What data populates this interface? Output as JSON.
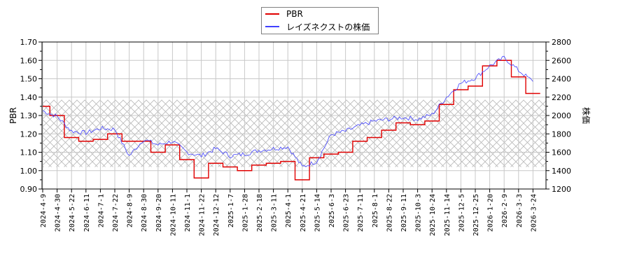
{
  "legend": {
    "items": [
      {
        "label": "PBR",
        "color": "#e00000"
      },
      {
        "label": "レイズネクストの株価",
        "color": "#4040ff"
      }
    ]
  },
  "chart_data": {
    "type": "line",
    "title": "",
    "xlabel": "",
    "ylabel": "PBR",
    "y2label": "株価",
    "ylim": [
      0.9,
      1.7
    ],
    "y2lim": [
      1200,
      2800
    ],
    "yticks": [
      "0.90",
      "1.00",
      "1.10",
      "1.20",
      "1.30",
      "1.40",
      "1.50",
      "1.60",
      "1.70"
    ],
    "y2ticks": [
      "1200",
      "1400",
      "1600",
      "1800",
      "2000",
      "2200",
      "2400",
      "2600",
      "2800"
    ],
    "grid": true,
    "legend_position": "top-center",
    "shaded_band": {
      "pbr_from": 1.02,
      "pbr_to": 1.385,
      "pattern": "crosshatch"
    },
    "categories": [
      "2024-4-9",
      "2024-4-30",
      "2024-5-22",
      "2024-6-11",
      "2024-7-1",
      "2024-7-22",
      "2024-8-9",
      "2024-8-30",
      "2024-9-20",
      "2024-10-11",
      "2024-11-1",
      "2024-11-22",
      "2024-12-12",
      "2025-1-7",
      "2025-1-28",
      "2025-2-18",
      "2025-3-11",
      "2025-4-1",
      "2025-4-21",
      "2025-5-14",
      "2025-6-3",
      "2025-6-23",
      "2025-7-11",
      "2025-8-1",
      "2025-8-22",
      "2025-9-11",
      "2025-10-3",
      "2025-10-24",
      "2025-11-14",
      "2025-12-5",
      "2025-12-25",
      "2026-1-20",
      "2026-2-9",
      "2026-3-3",
      "2026-3-24"
    ],
    "series": [
      {
        "name": "PBR",
        "axis": "left",
        "color": "#e00000",
        "values": [
          1.35,
          1.3,
          1.18,
          1.16,
          1.17,
          1.2,
          1.16,
          1.16,
          1.1,
          1.14,
          1.06,
          0.96,
          1.04,
          1.02,
          1.0,
          1.03,
          1.04,
          1.05,
          0.95,
          1.07,
          1.09,
          1.1,
          1.16,
          1.18,
          1.22,
          1.26,
          1.25,
          1.27,
          1.36,
          1.44,
          1.46,
          1.57,
          1.6,
          1.51,
          1.42
        ]
      },
      {
        "name": "レイズネクストの株価",
        "axis": "right",
        "color": "#4040ff",
        "values": [
          2050,
          1990,
          1830,
          1810,
          1860,
          1850,
          1560,
          1740,
          1680,
          1720,
          1600,
          1560,
          1640,
          1560,
          1580,
          1620,
          1640,
          1660,
          1440,
          1500,
          1790,
          1830,
          1890,
          1940,
          1960,
          1980,
          1960,
          2010,
          2200,
          2350,
          2410,
          2540,
          2630,
          2490,
          2370
        ]
      }
    ]
  }
}
